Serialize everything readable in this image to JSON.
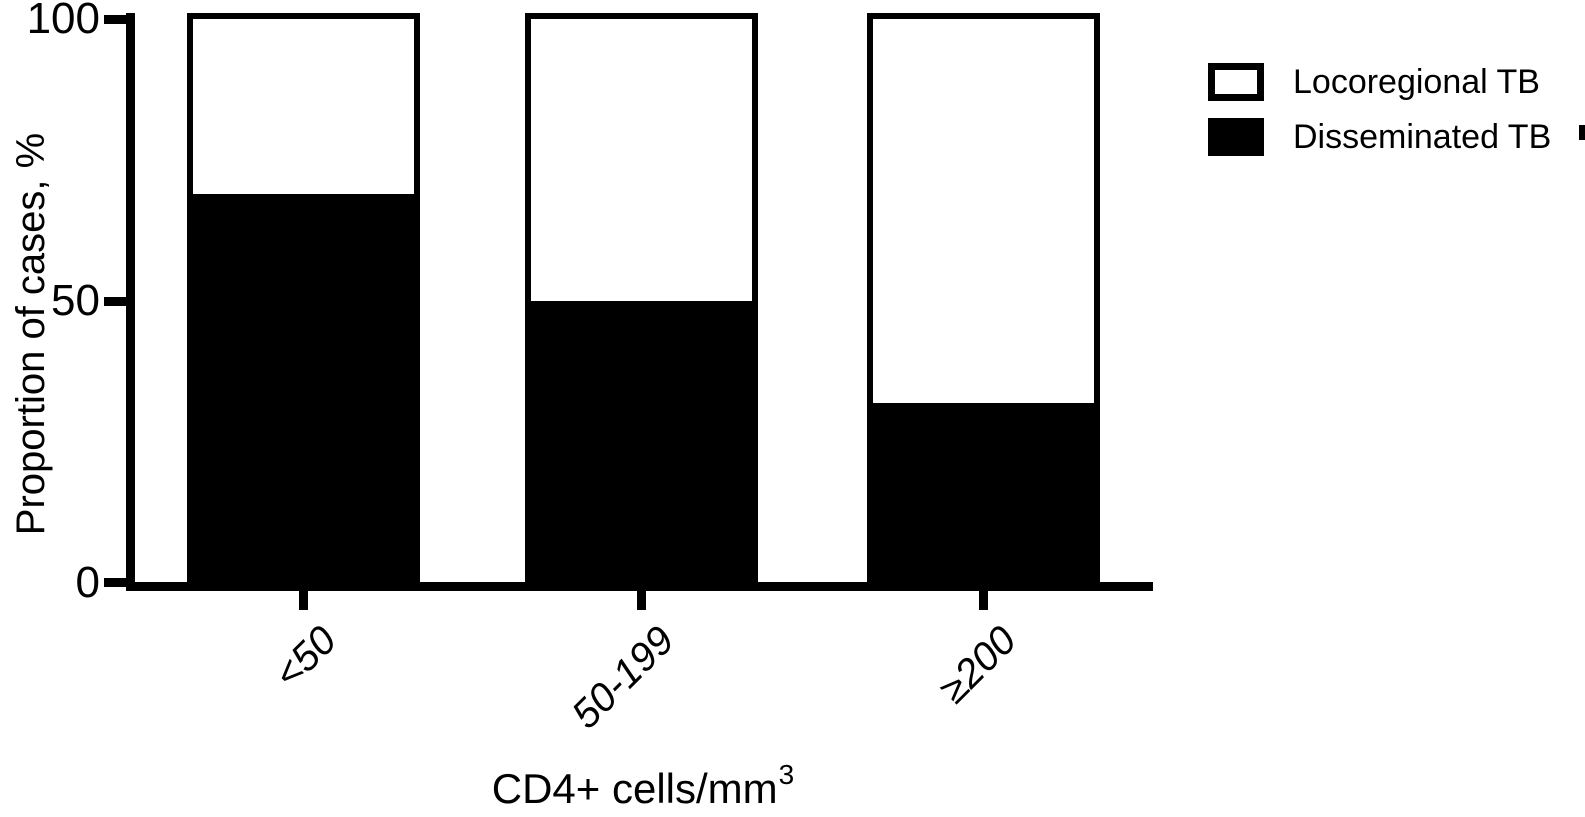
{
  "figure": {
    "background_color": "#ffffff",
    "ink_color": "#000000"
  },
  "chart_data": {
    "type": "bar",
    "stacked": true,
    "orientation": "vertical",
    "title": "",
    "xlabel": "CD4+ cells/mm³",
    "xlabel_base": "CD4+ cells/mm",
    "xlabel_sup": "3",
    "ylabel": "Proportion of cases, %",
    "ylim": [
      0,
      100
    ],
    "yticks": [
      0,
      50,
      100
    ],
    "grid": false,
    "categories": [
      "<50",
      "50-199",
      "≥200"
    ],
    "series": [
      {
        "name": "Locoregional TB",
        "color": "#ffffff",
        "border_color": "#000000",
        "values": [
          31,
          50,
          68
        ]
      },
      {
        "name": "Disseminated TB",
        "color": "#000000",
        "border_color": "#000000",
        "values": [
          69,
          50,
          32
        ]
      }
    ],
    "legend_position": "top-right"
  }
}
